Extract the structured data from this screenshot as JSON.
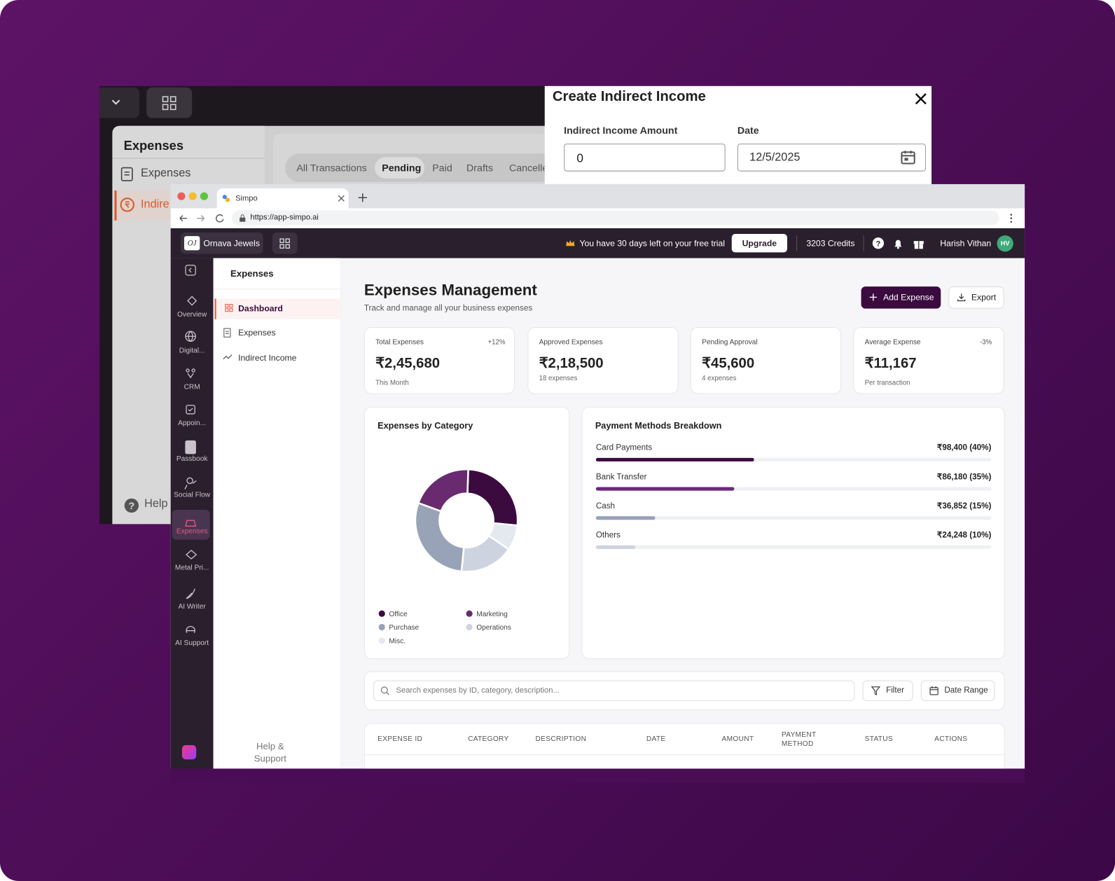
{
  "background_window": {
    "sidebar_title": "Expenses",
    "sidebar_items": [
      "Expenses",
      "Indire"
    ],
    "help": "Help",
    "tabs": [
      "All Transactions",
      "Pending",
      "Paid",
      "Drafts",
      "Cancelle"
    ]
  },
  "modal": {
    "title": "Create Indirect Income",
    "fields": [
      {
        "label": "Indirect Income Amount",
        "value": "0"
      },
      {
        "label": "Date",
        "value": "12/5/2025"
      }
    ]
  },
  "browser": {
    "tab_title": "Simpo",
    "url": "https://app-simpo.ai"
  },
  "header": {
    "workspace": "Ornava Jewels",
    "trial_notice": "You have 30 days left on your free trial",
    "upgrade": "Upgrade",
    "credits": "3203 Credits",
    "user": "Harish Vithan",
    "avatar": "HV"
  },
  "nav": [
    "Overview",
    "Digital...",
    "CRM",
    "Appoin...",
    "Passbook",
    "Social Flow",
    "Expenses",
    "Metal Pri...",
    "AI Writer",
    "AI Support"
  ],
  "subnav": {
    "title": "Expenses",
    "items": [
      "Dashboard",
      "Expenses",
      "Indirect Income"
    ],
    "help": "Help & Support"
  },
  "page": {
    "title": "Expenses Management",
    "subtitle": "Track and manage all your business expenses",
    "actions": [
      "Add Expense",
      "Export"
    ]
  },
  "stats": [
    {
      "label": "Total Expenses",
      "value": "₹2,45,680",
      "note": "This Month",
      "change": "+12%"
    },
    {
      "label": "Approved Expenses",
      "value": "₹2,18,500",
      "note": "18 expenses"
    },
    {
      "label": "Pending Approval",
      "value": "₹45,600",
      "note": "4 expenses"
    },
    {
      "label": "Average Expense",
      "value": "₹11,167",
      "note": "Per transaction",
      "change": "-3%"
    }
  ],
  "chart_data": [
    {
      "type": "pie",
      "title": "Expenses by Category",
      "categories": [
        "Office",
        "Misc.",
        "Operations",
        "Purchase",
        "Marketing"
      ],
      "values": [
        26,
        8,
        17,
        29,
        20
      ],
      "colors": [
        "#3b0a3f",
        "#e4e8ef",
        "#cdd4e0",
        "#98a3b8",
        "#6a2a70"
      ]
    },
    {
      "type": "bar",
      "title": "Payment Methods Breakdown",
      "categories": [
        "Card Payments",
        "Bank Transfer",
        "Cash",
        "Others"
      ],
      "values": [
        40,
        35,
        15,
        10
      ],
      "value_labels": [
        "₹98,400 (40%)",
        "₹86,180 (35%)",
        "₹36,852 (15%)",
        "₹24,248 (10%)"
      ],
      "colors": [
        "#3b0a3f",
        "#6a2a7a",
        "#98a3b8",
        "#cdd4e0"
      ],
      "xlim": [
        0,
        100
      ]
    }
  ],
  "search": {
    "placeholder": "Search expenses by ID, category, description...",
    "filter": "Filter",
    "date_range": "Date Range"
  },
  "table": {
    "headers": [
      "EXPENSE ID",
      "CATEGORY",
      "DESCRIPTION",
      "DATE",
      "AMOUNT",
      "PAYMENT METHOD",
      "STATUS",
      "ACTIONS"
    ]
  }
}
